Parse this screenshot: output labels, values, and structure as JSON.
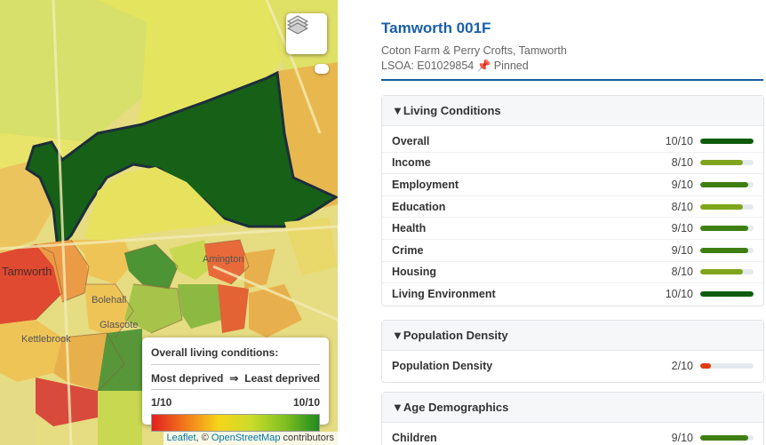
{
  "map": {
    "place_labels": [
      "Tamworth",
      "Bolehall",
      "Glascote",
      "Kettlebrook",
      "Amington"
    ],
    "layers_icon": "layers-icon",
    "legend": {
      "title": "Overall living conditions:",
      "low_label": "Most deprived",
      "arrow": "⇒",
      "high_label": "Least deprived",
      "min": "1/10",
      "max": "10/10"
    },
    "attribution": {
      "leaflet": "Leaflet",
      "sep": ", © ",
      "osm": "OpenStreetMap",
      "suffix": " contributors"
    }
  },
  "panel": {
    "title": "Tamworth 001F",
    "subtitle": "Coton Farm & Perry Crofts, Tamworth",
    "lsoa": "LSOA: E01029854 📌 Pinned",
    "sections": [
      {
        "heading": "▼Living Conditions",
        "rows": [
          {
            "label": "Overall",
            "value": "10/10",
            "score": 10,
            "color": "#0f5c0f"
          },
          {
            "label": "Income",
            "value": "8/10",
            "score": 8,
            "color": "#7fa51c"
          },
          {
            "label": "Employment",
            "value": "9/10",
            "score": 9,
            "color": "#3f7f12"
          },
          {
            "label": "Education",
            "value": "8/10",
            "score": 8,
            "color": "#7fa51c"
          },
          {
            "label": "Health",
            "value": "9/10",
            "score": 9,
            "color": "#3f7f12"
          },
          {
            "label": "Crime",
            "value": "9/10",
            "score": 9,
            "color": "#3f7f12"
          },
          {
            "label": "Housing",
            "value": "8/10",
            "score": 8,
            "color": "#7fa51c"
          },
          {
            "label": "Living Environment",
            "value": "10/10",
            "score": 10,
            "color": "#0f5c0f"
          }
        ]
      },
      {
        "heading": "▼Population Density",
        "rows": [
          {
            "label": "Population Density",
            "value": "2/10",
            "score": 2,
            "color": "#e03c10"
          }
        ]
      },
      {
        "heading": "▼Age Demographics",
        "rows": [
          {
            "label": "Children",
            "value": "9/10",
            "score": 9,
            "color": "#3f7f12"
          }
        ]
      }
    ]
  }
}
